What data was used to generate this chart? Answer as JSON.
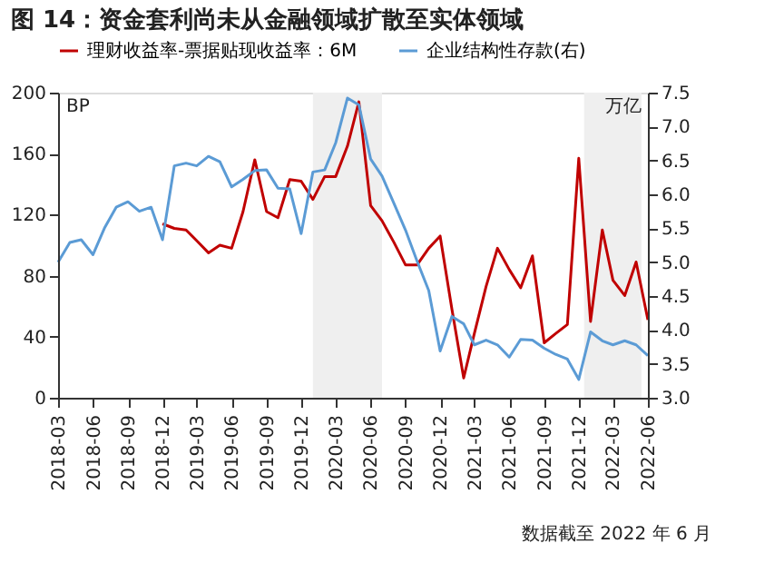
{
  "chart_data": {
    "type": "line",
    "title": "图 14：资金套利尚未从金融领域扩散至实体领域",
    "x": [
      "2018-03",
      "2018-04",
      "2018-05",
      "2018-06",
      "2018-07",
      "2018-08",
      "2018-09",
      "2018-10",
      "2018-11",
      "2018-12",
      "2019-01",
      "2019-02",
      "2019-03",
      "2019-04",
      "2019-05",
      "2019-06",
      "2019-07",
      "2019-08",
      "2019-09",
      "2019-10",
      "2019-11",
      "2019-12",
      "2020-01",
      "2020-02",
      "2020-03",
      "2020-04",
      "2020-05",
      "2020-06",
      "2020-07",
      "2020-08",
      "2020-09",
      "2020-10",
      "2020-11",
      "2020-12",
      "2021-01",
      "2021-02",
      "2021-03",
      "2021-04",
      "2021-05",
      "2021-06",
      "2021-07",
      "2021-08",
      "2021-09",
      "2021-10",
      "2021-11",
      "2021-12",
      "2022-01",
      "2022-02",
      "2022-03",
      "2022-04",
      "2022-05",
      "2022-06"
    ],
    "series": [
      {
        "name": "理财收益率-票据贴现收益率：6M",
        "color": "#c00000",
        "values": [
          null,
          null,
          null,
          null,
          null,
          null,
          null,
          null,
          null,
          114,
          111,
          110,
          103,
          95,
          100,
          98,
          122,
          156,
          122,
          118,
          143,
          142,
          130,
          145,
          145,
          165,
          194,
          126,
          116,
          102,
          87,
          87,
          98,
          106,
          58,
          13,
          42,
          73,
          98,
          84,
          72,
          93,
          36,
          42,
          48,
          157,
          50,
          110,
          77,
          67,
          89,
          51
        ]
      },
      {
        "name": "企业结构性存款(右)",
        "color": "#5b9bd5",
        "axis": "y2",
        "values": [
          5.0,
          5.29,
          5.33,
          5.11,
          5.5,
          5.81,
          5.89,
          5.75,
          5.81,
          5.33,
          6.42,
          6.46,
          6.42,
          6.56,
          6.48,
          6.11,
          6.22,
          6.35,
          6.36,
          6.09,
          6.08,
          5.42,
          6.33,
          6.36,
          6.76,
          7.42,
          7.32,
          6.52,
          6.27,
          5.87,
          5.47,
          5.02,
          4.58,
          3.69,
          4.2,
          4.09,
          3.78,
          3.85,
          3.78,
          3.6,
          3.86,
          3.85,
          3.73,
          3.64,
          3.57,
          3.27,
          3.97,
          3.84,
          3.78,
          3.84,
          3.78,
          3.62
        ]
      }
    ],
    "ylabel": "BP",
    "y2label": "万亿",
    "ylim": [
      0,
      200
    ],
    "yticks": [
      0,
      40,
      80,
      120,
      160,
      200
    ],
    "y2lim": [
      3.0,
      7.5
    ],
    "y2ticks": [
      {
        "value": 3.0,
        "label": "3.0"
      },
      {
        "value": 3.5,
        "label": "3.5"
      },
      {
        "value": 4.0,
        "label": "4.0"
      },
      {
        "value": 4.5,
        "label": "4.5"
      },
      {
        "value": 5.0,
        "label": "5.0"
      },
      {
        "value": 5.5,
        "label": "5.5"
      },
      {
        "value": 6.0,
        "label": "6.0"
      },
      {
        "value": 6.5,
        "label": "6.5"
      },
      {
        "value": 7.0,
        "label": "7.0"
      },
      {
        "value": 7.5,
        "label": "7.5"
      }
    ],
    "xlim": [
      "2018-03",
      "2022-06"
    ],
    "xticks": [
      "2018-03",
      "2018-06",
      "2018-09",
      "2018-12",
      "2019-03",
      "2019-06",
      "2019-09",
      "2019-12",
      "2020-03",
      "2020-06",
      "2020-09",
      "2020-12",
      "2021-03",
      "2021-06",
      "2021-09",
      "2021-12",
      "2022-03",
      "2022-06"
    ],
    "bands": [
      {
        "axis": "x",
        "from": "2020-01",
        "to": "2020-07",
        "color": "#efefef"
      },
      {
        "axis": "x",
        "from": "2021-12-15",
        "to": "2022-05-15",
        "color": "#efefef"
      }
    ],
    "annotations": [
      "数据截至 2022 年 6 月"
    ],
    "legend": "top",
    "grid": false,
    "line_style": "solid",
    "marker": "none"
  }
}
